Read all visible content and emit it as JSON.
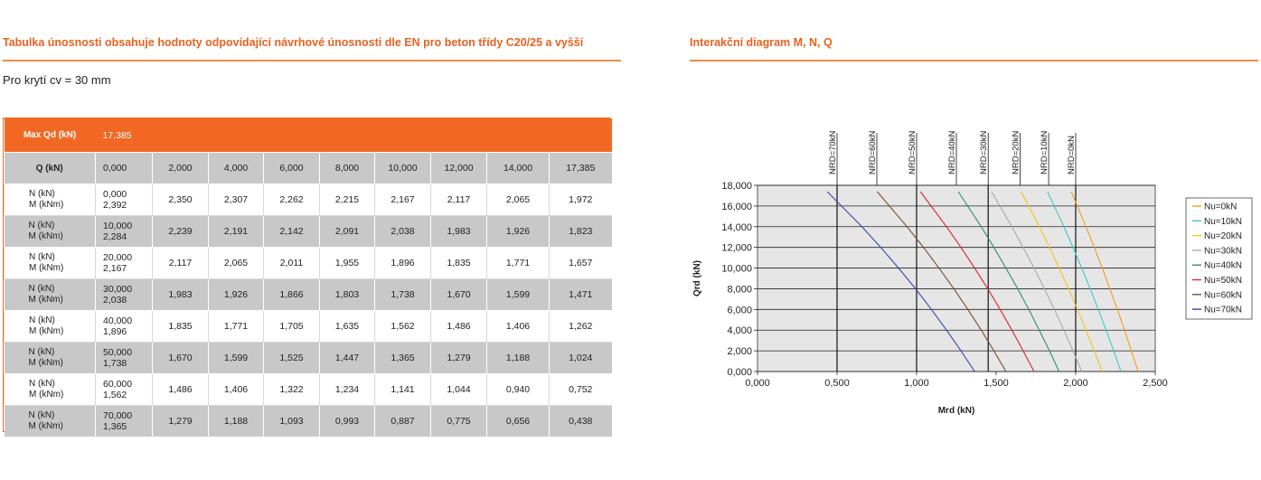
{
  "left_heading": "Tabulka únosnosti obsahuje hodnoty odpovídající návrhové únosnosti dle EN pro beton třídy C20/25 a vyšší",
  "right_heading": "Interakční diagram M, N, Q",
  "cover_text": "Pro krytí cv = 30 mm",
  "colors": {
    "accent": "#f26822",
    "row_gray": "#c8c8c8",
    "plot_bg": "#e6e6e6"
  },
  "table": {
    "max_label": "Max Qd (kN)",
    "max_value": "17,385",
    "q_label": "Q      (kN)",
    "q_values": [
      "0,000",
      "2,000",
      "4,000",
      "6,000",
      "8,000",
      "10,000",
      "12,000",
      "14,000",
      "17,385"
    ],
    "n_label": "N       (kN)",
    "m_label": "M     (kNm)",
    "rows": [
      {
        "n": "0,000",
        "m0": "2,392",
        "m": [
          "2,350",
          "2,307",
          "2,262",
          "2,215",
          "2,167",
          "2,117",
          "2,065",
          "1,972"
        ]
      },
      {
        "n": "10,000",
        "m0": "2,284",
        "m": [
          "2,239",
          "2,191",
          "2,142",
          "2,091",
          "2,038",
          "1,983",
          "1,926",
          "1,823"
        ]
      },
      {
        "n": "20,000",
        "m0": "2,167",
        "m": [
          "2,117",
          "2,065",
          "2,011",
          "1,955",
          "1,896",
          "1,835",
          "1,771",
          "1,657"
        ]
      },
      {
        "n": "30,000",
        "m0": "2,038",
        "m": [
          "1,983",
          "1,926",
          "1,866",
          "1,803",
          "1,738",
          "1,670",
          "1,599",
          "1,471"
        ]
      },
      {
        "n": "40,000",
        "m0": "1,896",
        "m": [
          "1,835",
          "1,771",
          "1,705",
          "1,635",
          "1,562",
          "1,486",
          "1,406",
          "1,262"
        ]
      },
      {
        "n": "50,000",
        "m0": "1,738",
        "m": [
          "1,670",
          "1,599",
          "1,525",
          "1,447",
          "1,365",
          "1,279",
          "1,188",
          "1,024"
        ]
      },
      {
        "n": "60,000",
        "m0": "1,562",
        "m": [
          "1,486",
          "1,406",
          "1,322",
          "1,234",
          "1,141",
          "1,044",
          "0,940",
          "0,752"
        ]
      },
      {
        "n": "70,000",
        "m0": "1,365",
        "m": [
          "1,279",
          "1,188",
          "1,093",
          "0,993",
          "0,887",
          "0,775",
          "0,656",
          "0,438"
        ]
      }
    ]
  },
  "chart_data": {
    "type": "line",
    "title": "Interakční diagram M, N, Q",
    "xlabel": "Mrd (kN)",
    "ylabel": "Qrd (kN)",
    "xlim": [
      0,
      2.5
    ],
    "ylim": [
      0,
      18
    ],
    "x_ticks": [
      "0,000",
      "0,500",
      "1,000",
      "1,500",
      "2,000",
      "2,500"
    ],
    "y_ticks": [
      "0,000",
      "2,000",
      "4,000",
      "6,000",
      "8,000",
      "10,000",
      "12,000",
      "14,000",
      "16,000",
      "18,000"
    ],
    "y_tick_values": [
      0,
      2,
      4,
      6,
      8,
      10,
      12,
      14,
      16,
      18
    ],
    "x_tick_values": [
      0,
      0.5,
      1,
      1.5,
      2,
      2.5
    ],
    "grid": true,
    "legend_position": "right",
    "q": [
      0,
      2,
      4,
      6,
      8,
      10,
      12,
      14,
      17.385
    ],
    "vertical_markers": [
      {
        "label": "NRD=70kN",
        "x": 0.5
      },
      {
        "label": "NRD=60kN",
        "x": 0.75
      },
      {
        "label": "NRD=50kN",
        "x": 1.0
      },
      {
        "label": "NRD=40kN",
        "x": 1.25
      },
      {
        "label": "NRD=30kN",
        "x": 1.45
      },
      {
        "label": "NRD=20kN",
        "x": 1.65
      },
      {
        "label": "NRD=10kN",
        "x": 1.83
      },
      {
        "label": "NRD=0kN",
        "x": 2.0
      }
    ],
    "series": [
      {
        "name": "Nu=0kN",
        "color": "#f39c1f",
        "mrd": [
          2.392,
          2.35,
          2.307,
          2.262,
          2.215,
          2.167,
          2.117,
          2.065,
          1.972
        ]
      },
      {
        "name": "Nu=10kN",
        "color": "#3cc9c8",
        "mrd": [
          2.284,
          2.239,
          2.191,
          2.142,
          2.091,
          2.038,
          1.983,
          1.926,
          1.823
        ]
      },
      {
        "name": "Nu=20kN",
        "color": "#f2c41a",
        "mrd": [
          2.167,
          2.117,
          2.065,
          2.011,
          1.955,
          1.896,
          1.835,
          1.771,
          1.657
        ]
      },
      {
        "name": "Nu=30kN",
        "color": "#a9a9a9",
        "mrd": [
          2.038,
          1.983,
          1.926,
          1.866,
          1.803,
          1.738,
          1.67,
          1.599,
          1.471
        ]
      },
      {
        "name": "Nu=40kN",
        "color": "#2e8f6a",
        "mrd": [
          1.896,
          1.835,
          1.771,
          1.705,
          1.635,
          1.562,
          1.486,
          1.406,
          1.262
        ]
      },
      {
        "name": "Nu=50kN",
        "color": "#d8262b",
        "mrd": [
          1.738,
          1.67,
          1.599,
          1.525,
          1.447,
          1.365,
          1.279,
          1.188,
          1.024
        ]
      },
      {
        "name": "Nu=60kN",
        "color": "#7b4a2c",
        "mrd": [
          1.562,
          1.486,
          1.406,
          1.322,
          1.234,
          1.141,
          1.044,
          0.94,
          0.752
        ]
      },
      {
        "name": "Nu=70kN",
        "color": "#3548a8",
        "mrd": [
          1.365,
          1.279,
          1.188,
          1.093,
          0.993,
          0.887,
          0.775,
          0.656,
          0.438
        ]
      }
    ]
  }
}
